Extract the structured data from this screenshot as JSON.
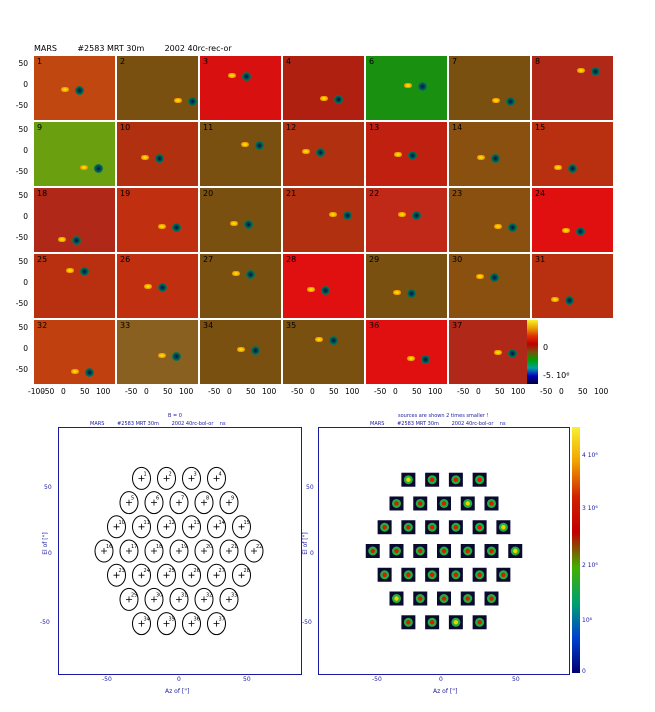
{
  "header": {
    "title": "MARS        #2583 MRT 30m        2002 40rc-rec-or"
  },
  "grid": {
    "numbers": [
      [
        "1",
        "2",
        "3",
        "4",
        "6",
        "7",
        "8"
      ],
      [
        "9",
        "10",
        "11",
        "12",
        "13",
        "14",
        "15"
      ],
      [
        "18",
        "19",
        "20",
        "21",
        "22",
        "23",
        "24"
      ],
      [
        "25",
        "26",
        "27",
        "28",
        "29",
        "30",
        "31"
      ],
      [
        "32",
        "33",
        "34",
        "35",
        "36",
        "37",
        ""
      ]
    ],
    "bg": [
      [
        "#c04810",
        "#7a5010",
        "#d81010",
        "#b02010",
        "#1a9010",
        "#7a5010",
        "#b02818"
      ],
      [
        "#6aa010",
        "#b03010",
        "#7a5010",
        "#b03010",
        "#c02010",
        "#8a5010",
        "#b83010"
      ],
      [
        "#b02818",
        "#c03010",
        "#7a5010",
        "#b03010",
        "#c02818",
        "#8a5010",
        "#e01010"
      ],
      [
        "#b83010",
        "#c03010",
        "#7a5010",
        "#e01010",
        "#7a5010",
        "#8a5010",
        "#b83010"
      ],
      [
        "#c04010",
        "#8a6020",
        "#7a5010",
        "#7a5010",
        "#e01010",
        "#b02818",
        ""
      ]
    ],
    "ytick_labels": [
      "50",
      "0",
      "-50"
    ],
    "xtick_labels": [
      "-100",
      "-50",
      "0",
      "50",
      "100"
    ]
  },
  "colorbar": {
    "labels": [
      "0",
      "-5. 10⁶"
    ]
  },
  "left_plot": {
    "top_label": "B = 0",
    "subtitle": "MARS        #2583 MRT 30m        2002 40rc-bol-or    ns",
    "ylabel": "El of [\"]",
    "xlabel": "Az of [\"]",
    "yticks": [
      "50",
      "0",
      "-50"
    ],
    "xticks": [
      "-50",
      "0",
      "50"
    ],
    "beam_labels": [
      "1",
      "2",
      "3",
      "4",
      "5",
      "6",
      "7",
      "8",
      "9",
      "10",
      "11",
      "12",
      "13",
      "14",
      "15",
      "16",
      "17",
      "18",
      "19",
      "20",
      "21",
      "22",
      "23",
      "24",
      "25",
      "26",
      "27",
      "28",
      "29",
      "30",
      "31",
      "32",
      "33",
      "34",
      "35",
      "36",
      "37"
    ]
  },
  "right_plot": {
    "top_label": "sources are shown 2 times smaller !",
    "subtitle": "MARS        #2583 MRT 30m        2002 40rc-bol-or    ns",
    "ylabel": "El of [\"]",
    "xlabel": "Az of [\"]",
    "yticks": [
      "50",
      "0",
      "-50"
    ],
    "xticks": [
      "-50",
      "0",
      "50"
    ],
    "colorbar_ticks": [
      "4 10⁶",
      "3 10⁶",
      "2 10⁶",
      "10⁶",
      "0"
    ]
  },
  "colors": {
    "axis_blue": "#1a1aa0"
  }
}
